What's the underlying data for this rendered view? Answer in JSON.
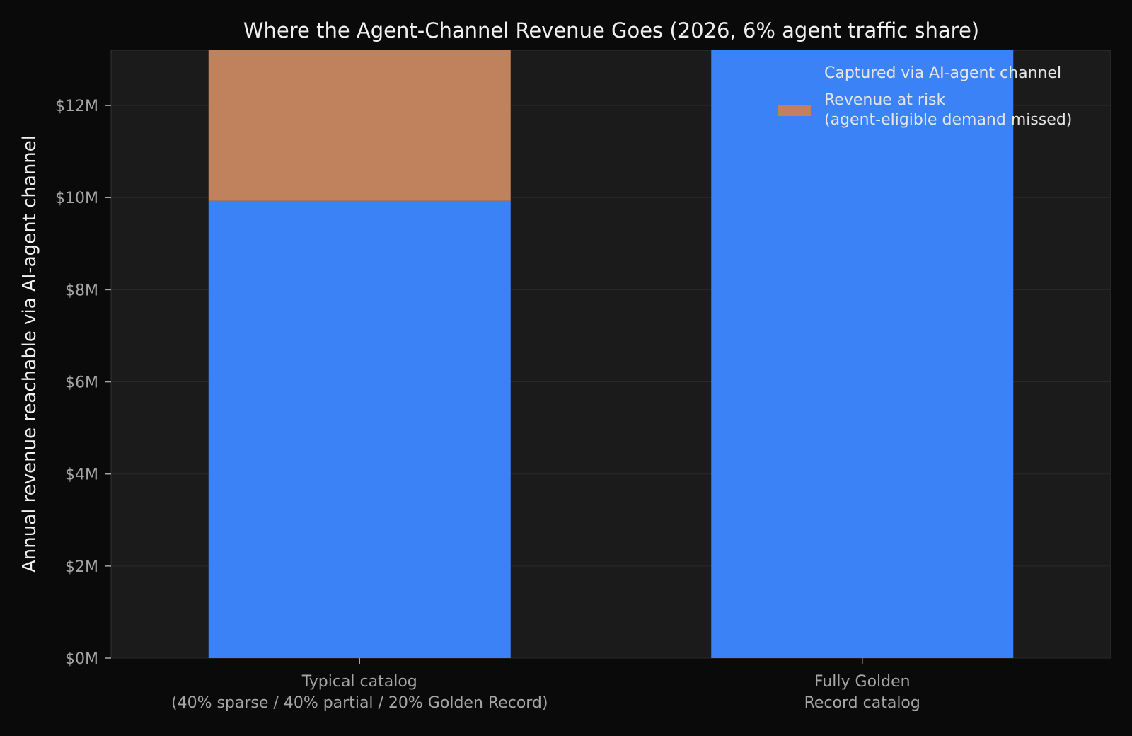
{
  "chart_data": {
    "type": "bar",
    "stacked": true,
    "title": "Where the Agent-Channel Revenue Goes (2026, 6% agent traffic share)",
    "xlabel": "",
    "ylabel": "Annual revenue reachable via AI-agent channel",
    "categories": [
      [
        "Typical catalog",
        "(40% sparse / 40% partial / 20% Golden Record)"
      ],
      [
        "Fully Golden",
        "Record catalog"
      ]
    ],
    "series": [
      {
        "name": "Captured via AI-agent channel",
        "color": "#3b82f6",
        "values": [
          9.93,
          13.2
        ]
      },
      {
        "name": [
          "Revenue at risk",
          "(agent-eligible demand missed)"
        ],
        "color": "#c0825d",
        "values": [
          3.27,
          0
        ]
      }
    ],
    "ylim": [
      0,
      13.2
    ],
    "yticks": [
      0,
      2,
      4,
      6,
      8,
      10,
      12
    ],
    "ytick_labels": [
      "$0M",
      "$2M",
      "$4M",
      "$6M",
      "$8M",
      "$10M",
      "$12M"
    ],
    "grid": true,
    "legend_position": "top-right",
    "colors": {
      "background": "#0a0a0a",
      "plot_background": "#1b1b1b",
      "grid": "#2a2a2a"
    }
  }
}
